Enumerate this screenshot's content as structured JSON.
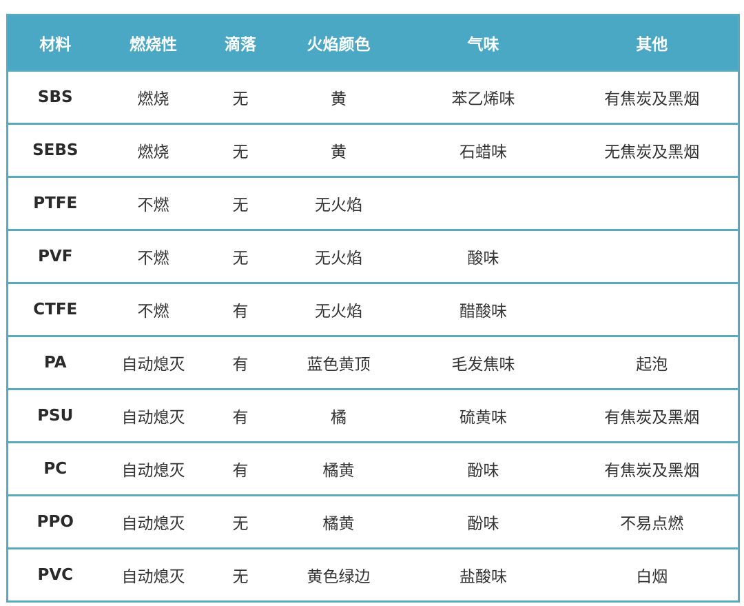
{
  "table": {
    "headers": [
      "材料",
      "燃烧性",
      "滴落",
      "火焰颜色",
      "气味",
      "其他"
    ],
    "rows": [
      [
        "SBS",
        "燃烧",
        "无",
        "黄",
        "苯乙烯味",
        "有焦炭及黑烟"
      ],
      [
        "SEBS",
        "燃烧",
        "无",
        "黄",
        "石蜡味",
        "无焦炭及黑烟"
      ],
      [
        "PTFE",
        "不燃",
        "无",
        "无火焰",
        "",
        ""
      ],
      [
        "PVF",
        "不燃",
        "无",
        "无火焰",
        "酸味",
        ""
      ],
      [
        "CTFE",
        "不燃",
        "有",
        "无火焰",
        "醋酸味",
        ""
      ],
      [
        "PA",
        "自动熄灭",
        "有",
        "蓝色黄顶",
        "毛发焦味",
        "起泡"
      ],
      [
        "PSU",
        "自动熄灭",
        "有",
        "橘",
        "硫黄味",
        "有焦炭及黑烟"
      ],
      [
        "PC",
        "自动熄灭",
        "有",
        "橘黄",
        "酚味",
        "有焦炭及黑烟"
      ],
      [
        "PPO",
        "自动熄灭",
        "无",
        "橘黄",
        "酚味",
        "不易点燃"
      ],
      [
        "PVC",
        "自动熄灭",
        "无",
        "黄色绿边",
        "盐酸味",
        "白烟"
      ]
    ]
  },
  "colors": {
    "header_bg": "#4aa8c4",
    "border": "#5aa9bc"
  }
}
